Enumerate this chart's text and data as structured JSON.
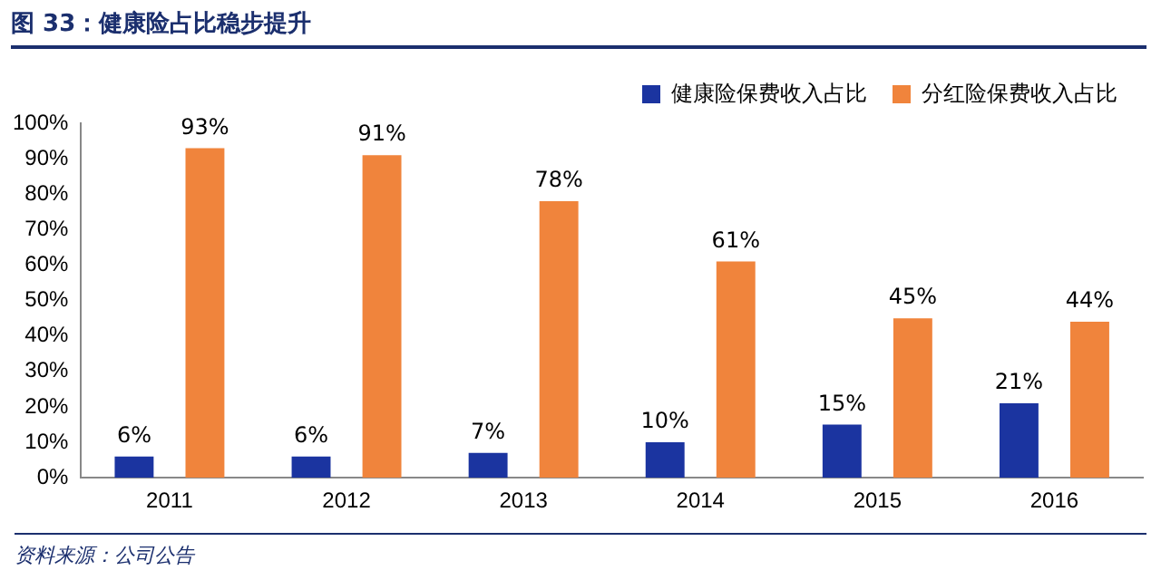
{
  "chart_data": {
    "type": "bar",
    "title": "图 33：健康险占比稳步提升",
    "categories": [
      "2011",
      "2012",
      "2013",
      "2014",
      "2015",
      "2016"
    ],
    "series": [
      {
        "name": "健康险保费收入占比",
        "color": "#1b34a0",
        "values": [
          6,
          6,
          7,
          10,
          15,
          21
        ],
        "value_labels": [
          "6%",
          "6%",
          "7%",
          "10%",
          "15%",
          "21%"
        ]
      },
      {
        "name": "分红险保费收入占比",
        "color": "#f0843c",
        "values": [
          93,
          91,
          78,
          61,
          45,
          44
        ],
        "value_labels": [
          "93%",
          "91%",
          "78%",
          "61%",
          "45%",
          "44%"
        ]
      }
    ],
    "ylim": [
      0,
      100
    ],
    "yticks": [
      {
        "value": 0,
        "label": "0%"
      },
      {
        "value": 10,
        "label": "10%"
      },
      {
        "value": 20,
        "label": "20%"
      },
      {
        "value": 30,
        "label": "30%"
      },
      {
        "value": 40,
        "label": "40%"
      },
      {
        "value": 50,
        "label": "50%"
      },
      {
        "value": 60,
        "label": "60%"
      },
      {
        "value": 70,
        "label": "70%"
      },
      {
        "value": 80,
        "label": "80%"
      },
      {
        "value": 90,
        "label": "90%"
      },
      {
        "value": 100,
        "label": "100%"
      }
    ],
    "grid": false,
    "legend": "top right",
    "annotations": [
      "资料来源：公司公告"
    ]
  }
}
